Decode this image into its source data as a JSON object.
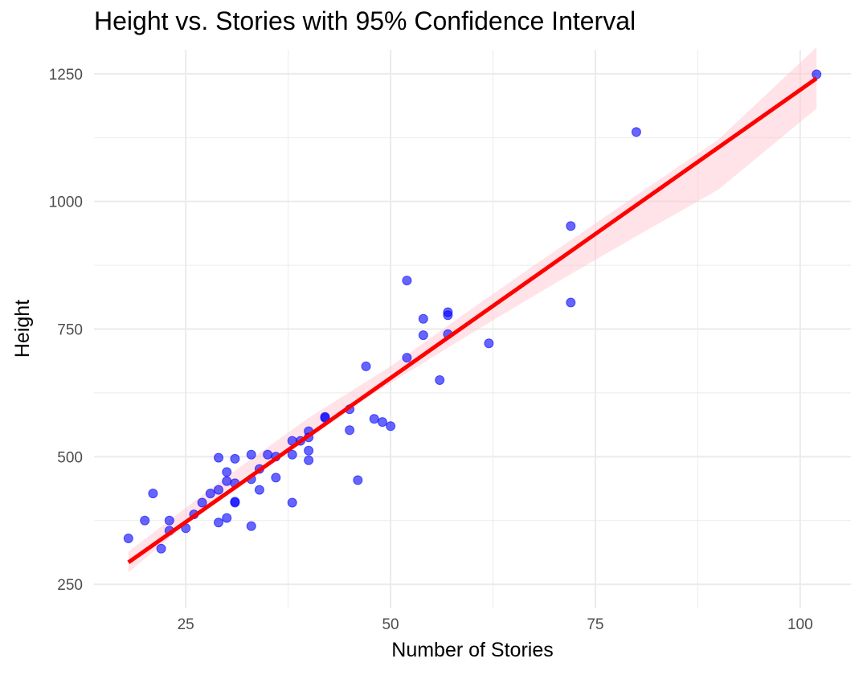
{
  "chart_data": {
    "type": "scatter",
    "title": "Height vs. Stories with 95% Confidence Interval",
    "xlabel": "Number of Stories",
    "ylabel": "Height",
    "xlim": [
      13.8,
      106.2
    ],
    "ylim": [
      203,
      1297
    ],
    "x_ticks": [
      25,
      50,
      75,
      100
    ],
    "y_ticks": [
      250,
      500,
      750,
      1000,
      1250
    ],
    "grid": true,
    "colors": {
      "points": "#0000ff",
      "fit_line": "#ff0000",
      "ci_band": "#ffc0cb",
      "grid": "#ebebeb",
      "text": "#4d4d4d"
    },
    "points": [
      [
        18,
        340
      ],
      [
        20,
        375
      ],
      [
        21,
        428
      ],
      [
        22,
        320
      ],
      [
        23,
        375
      ],
      [
        23,
        355
      ],
      [
        25,
        360
      ],
      [
        26,
        387
      ],
      [
        27,
        410
      ],
      [
        28,
        428
      ],
      [
        29,
        498
      ],
      [
        29,
        435
      ],
      [
        29,
        371
      ],
      [
        30,
        470
      ],
      [
        30,
        452
      ],
      [
        30,
        380
      ],
      [
        31,
        496
      ],
      [
        31,
        448
      ],
      [
        31,
        412
      ],
      [
        31,
        410
      ],
      [
        33,
        504
      ],
      [
        33,
        456
      ],
      [
        33,
        364
      ],
      [
        34,
        476
      ],
      [
        34,
        435
      ],
      [
        35,
        504
      ],
      [
        36,
        500
      ],
      [
        36,
        459
      ],
      [
        38,
        531
      ],
      [
        38,
        504
      ],
      [
        38,
        410
      ],
      [
        39,
        531
      ],
      [
        40,
        550
      ],
      [
        40,
        538
      ],
      [
        40,
        512
      ],
      [
        40,
        493
      ],
      [
        42,
        578
      ],
      [
        42,
        576
      ],
      [
        45,
        593
      ],
      [
        45,
        552
      ],
      [
        46,
        454
      ],
      [
        47,
        677
      ],
      [
        48,
        574
      ],
      [
        49,
        568
      ],
      [
        50,
        560
      ],
      [
        52,
        845
      ],
      [
        52,
        694
      ],
      [
        54,
        770
      ],
      [
        54,
        738
      ],
      [
        56,
        650
      ],
      [
        57,
        783
      ],
      [
        57,
        777
      ],
      [
        57,
        740
      ],
      [
        62,
        722
      ],
      [
        72,
        952
      ],
      [
        72,
        802
      ],
      [
        80,
        1136
      ],
      [
        102,
        1249
      ]
    ],
    "fit": {
      "x": [
        18,
        102
      ],
      "y": [
        293,
        1241
      ]
    },
    "ci": {
      "x": [
        18,
        30,
        40,
        50,
        60,
        70,
        80,
        90,
        102
      ],
      "lower": [
        273,
        436,
        545,
        644,
        743,
        839,
        932,
        1023,
        1182
      ],
      "upper": [
        314,
        461,
        576,
        677,
        791,
        902,
        1012,
        1121,
        1302
      ]
    }
  }
}
